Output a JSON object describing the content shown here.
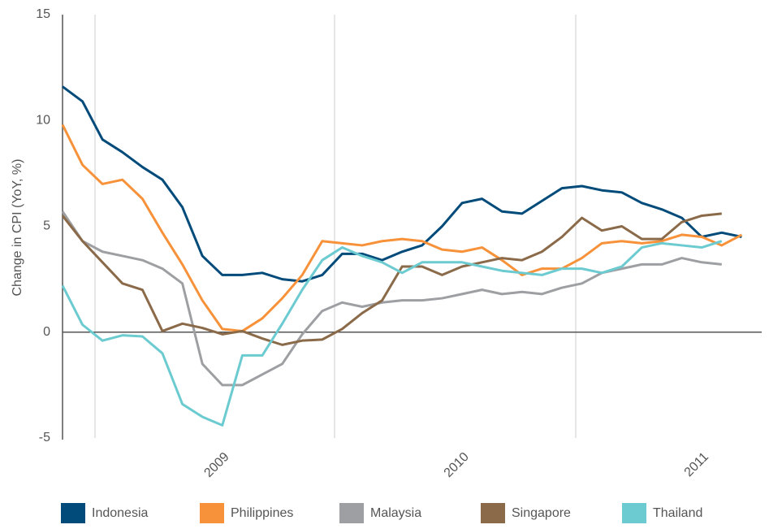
{
  "chart_data": {
    "type": "line",
    "y_label": "Change in CPI (YoY, %)",
    "categories": [
      null,
      null,
      null,
      null,
      null,
      null,
      null,
      null,
      "2009",
      null,
      null,
      null,
      null,
      null,
      null,
      null,
      null,
      null,
      null,
      null,
      "2010",
      null,
      null,
      null,
      null,
      null,
      null,
      null,
      null,
      null,
      null,
      null,
      "2011",
      null,
      null
    ],
    "ylim": [
      -5,
      15
    ],
    "yticks": [
      -5,
      0,
      5,
      10,
      15
    ],
    "series": [
      {
        "name": "Indonesia",
        "color": "#004b7a",
        "values": [
          11.6,
          10.9,
          9.1,
          8.5,
          7.8,
          7.2,
          5.9,
          3.6,
          2.7,
          2.7,
          2.8,
          2.5,
          2.4,
          2.7,
          3.7,
          3.7,
          3.4,
          3.8,
          4.1,
          5.0,
          6.1,
          6.3,
          5.7,
          5.6,
          6.2,
          6.8,
          6.9,
          6.7,
          6.6,
          6.1,
          5.8,
          5.4,
          4.5,
          4.7,
          4.5
        ]
      },
      {
        "name": "Philippines",
        "color": "#f7923a",
        "values": [
          9.8,
          7.9,
          7.0,
          7.2,
          6.3,
          4.7,
          3.2,
          1.5,
          0.15,
          0.05,
          0.65,
          1.6,
          2.7,
          4.3,
          4.2,
          4.1,
          4.3,
          4.4,
          4.3,
          3.9,
          3.8,
          4.0,
          3.4,
          2.7,
          3.0,
          3.0,
          3.5,
          4.2,
          4.3,
          4.2,
          4.3,
          4.6,
          4.5,
          4.1,
          4.6
        ]
      },
      {
        "name": "Malaysia",
        "color": "#9d9fa2",
        "values": [
          5.7,
          4.3,
          3.8,
          3.6,
          3.4,
          3.0,
          2.3,
          -1.5,
          -2.5,
          -2.5,
          -2.0,
          -1.5,
          -0.1,
          1.0,
          1.4,
          1.2,
          1.4,
          1.5,
          1.5,
          1.6,
          1.8,
          2.0,
          1.8,
          1.9,
          1.8,
          2.1,
          2.3,
          2.8,
          3.0,
          3.2,
          3.2,
          3.5,
          3.3,
          3.2,
          null
        ]
      },
      {
        "name": "Singapore",
        "color": "#8a6a48",
        "values": [
          5.5,
          4.3,
          3.3,
          2.3,
          2.0,
          0.05,
          0.4,
          0.2,
          -0.1,
          0.05,
          -0.3,
          -0.6,
          -0.4,
          -0.35,
          0.15,
          0.9,
          1.5,
          3.1,
          3.1,
          2.7,
          3.1,
          3.3,
          3.5,
          3.4,
          3.8,
          4.5,
          5.4,
          4.8,
          5.0,
          4.4,
          4.4,
          5.2,
          5.5,
          5.6,
          null
        ]
      },
      {
        "name": "Thailand",
        "color": "#6ccbd0",
        "values": [
          2.2,
          0.35,
          -0.4,
          -0.15,
          -0.2,
          -1.0,
          -3.4,
          -4.0,
          -4.4,
          -1.1,
          -1.1,
          0.4,
          2.0,
          3.4,
          4.0,
          3.6,
          3.3,
          2.8,
          3.3,
          3.3,
          3.3,
          3.1,
          2.9,
          2.8,
          2.7,
          3.0,
          3.0,
          2.8,
          3.1,
          4.0,
          4.2,
          4.1,
          4.0,
          4.3,
          null
        ]
      }
    ]
  }
}
